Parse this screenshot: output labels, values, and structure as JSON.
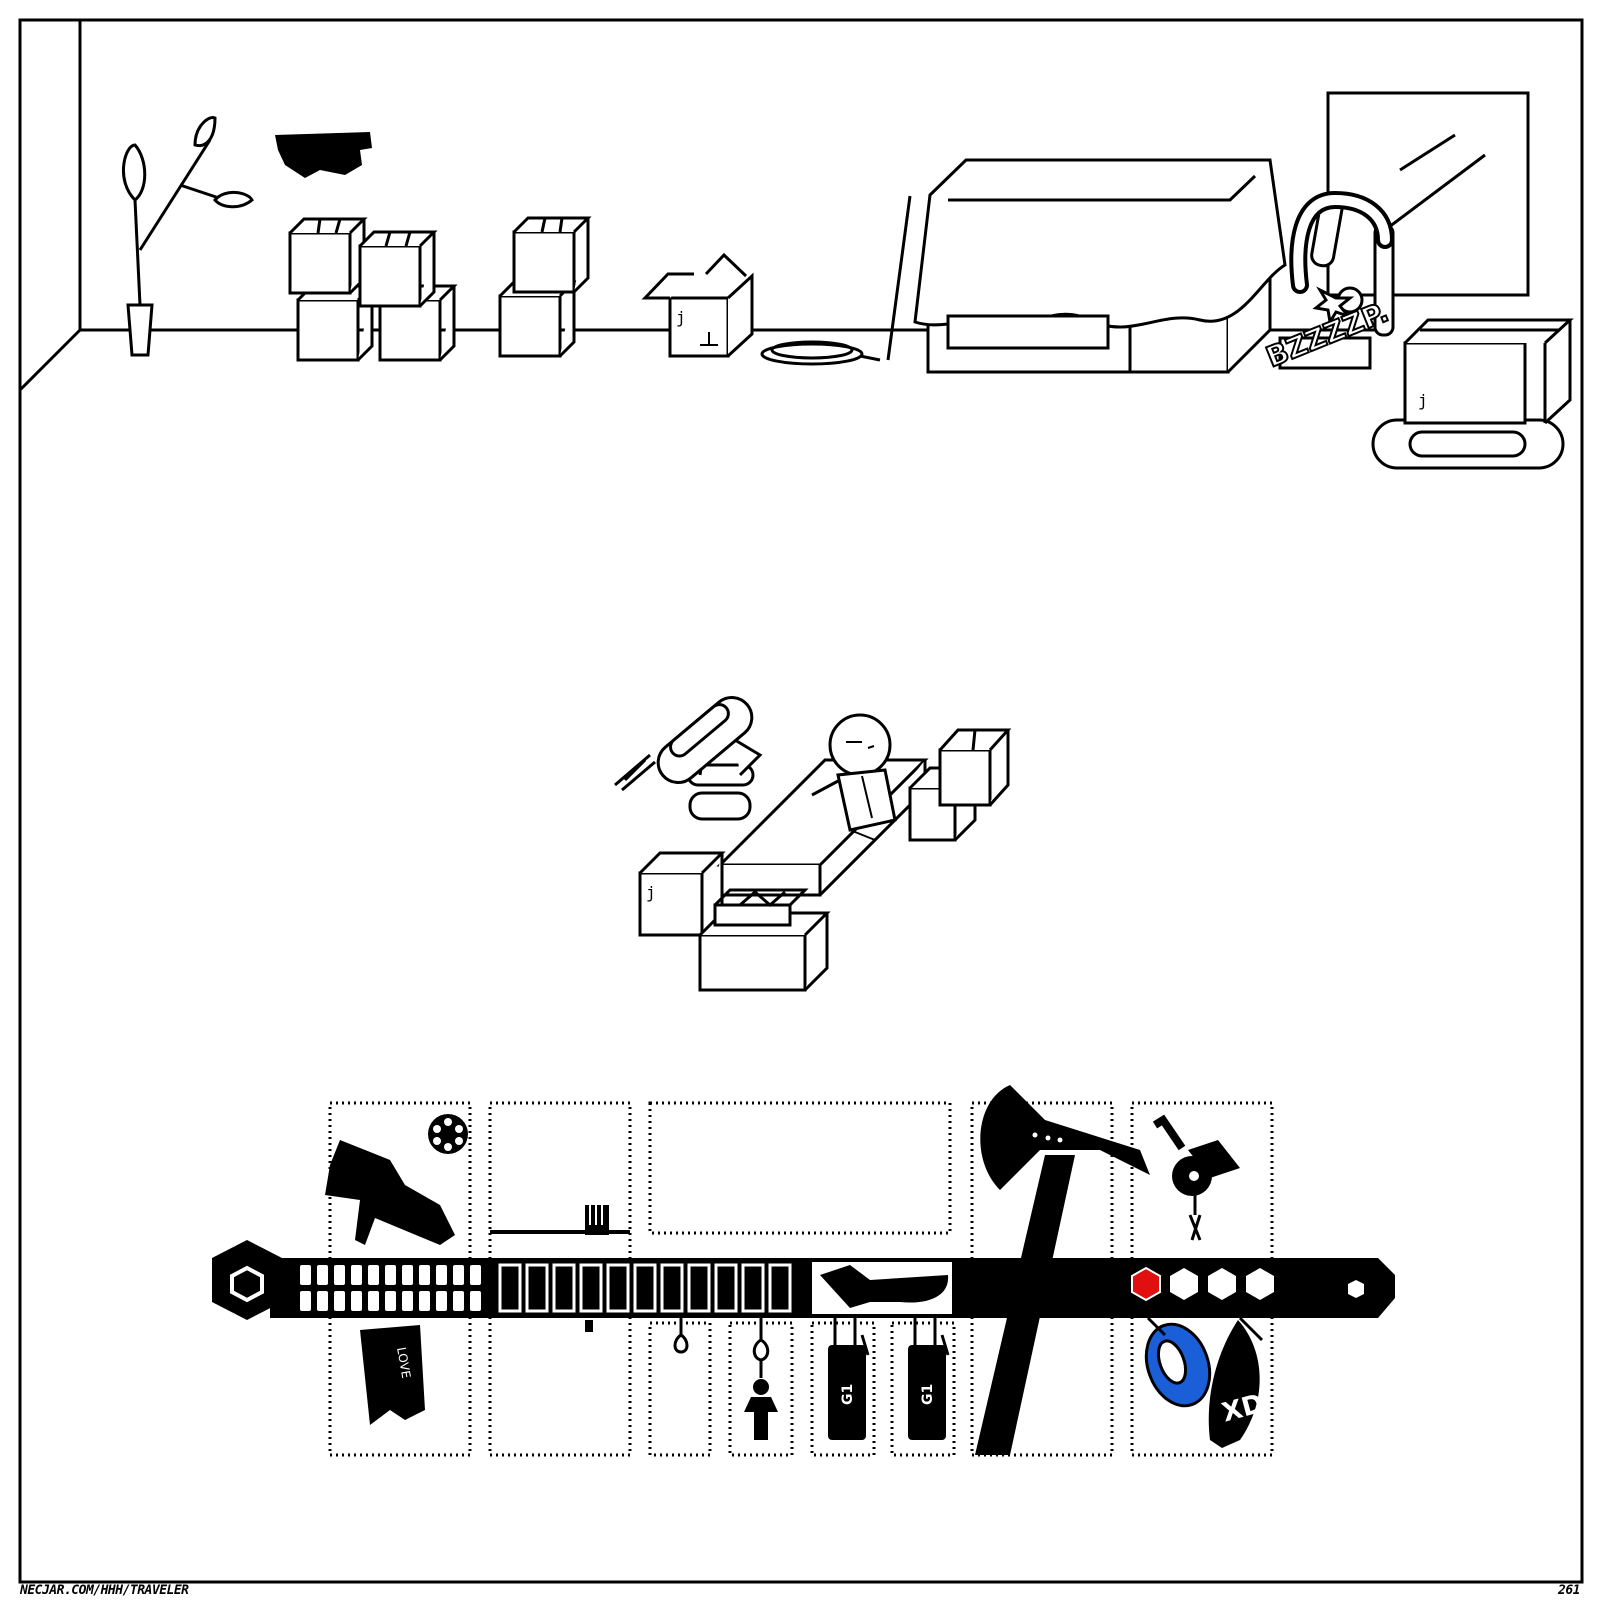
{
  "footer": {
    "url": "NECJAR.COM/HHH/TRAVELER",
    "page_number": "261"
  },
  "scene": {
    "sound_effect": "BZZZZP.",
    "box_glyph": "j"
  },
  "inventory": {
    "items": [
      {
        "name": "revolver",
        "label": "LOVE"
      },
      {
        "name": "comb"
      },
      {
        "name": "empty-slot"
      },
      {
        "name": "keychain-figure"
      },
      {
        "name": "grenade",
        "label": "G1"
      },
      {
        "name": "grenade",
        "label": "G1"
      },
      {
        "name": "tomahawk-axe"
      },
      {
        "name": "key"
      },
      {
        "name": "duct-tape"
      },
      {
        "name": "bottle",
        "label": "XD"
      }
    ],
    "health_hexes": {
      "filled": 1,
      "total": 4
    },
    "colors": {
      "active_hex": "#e01010",
      "tape": "#1a5fd8",
      "ink": "#000000"
    }
  }
}
